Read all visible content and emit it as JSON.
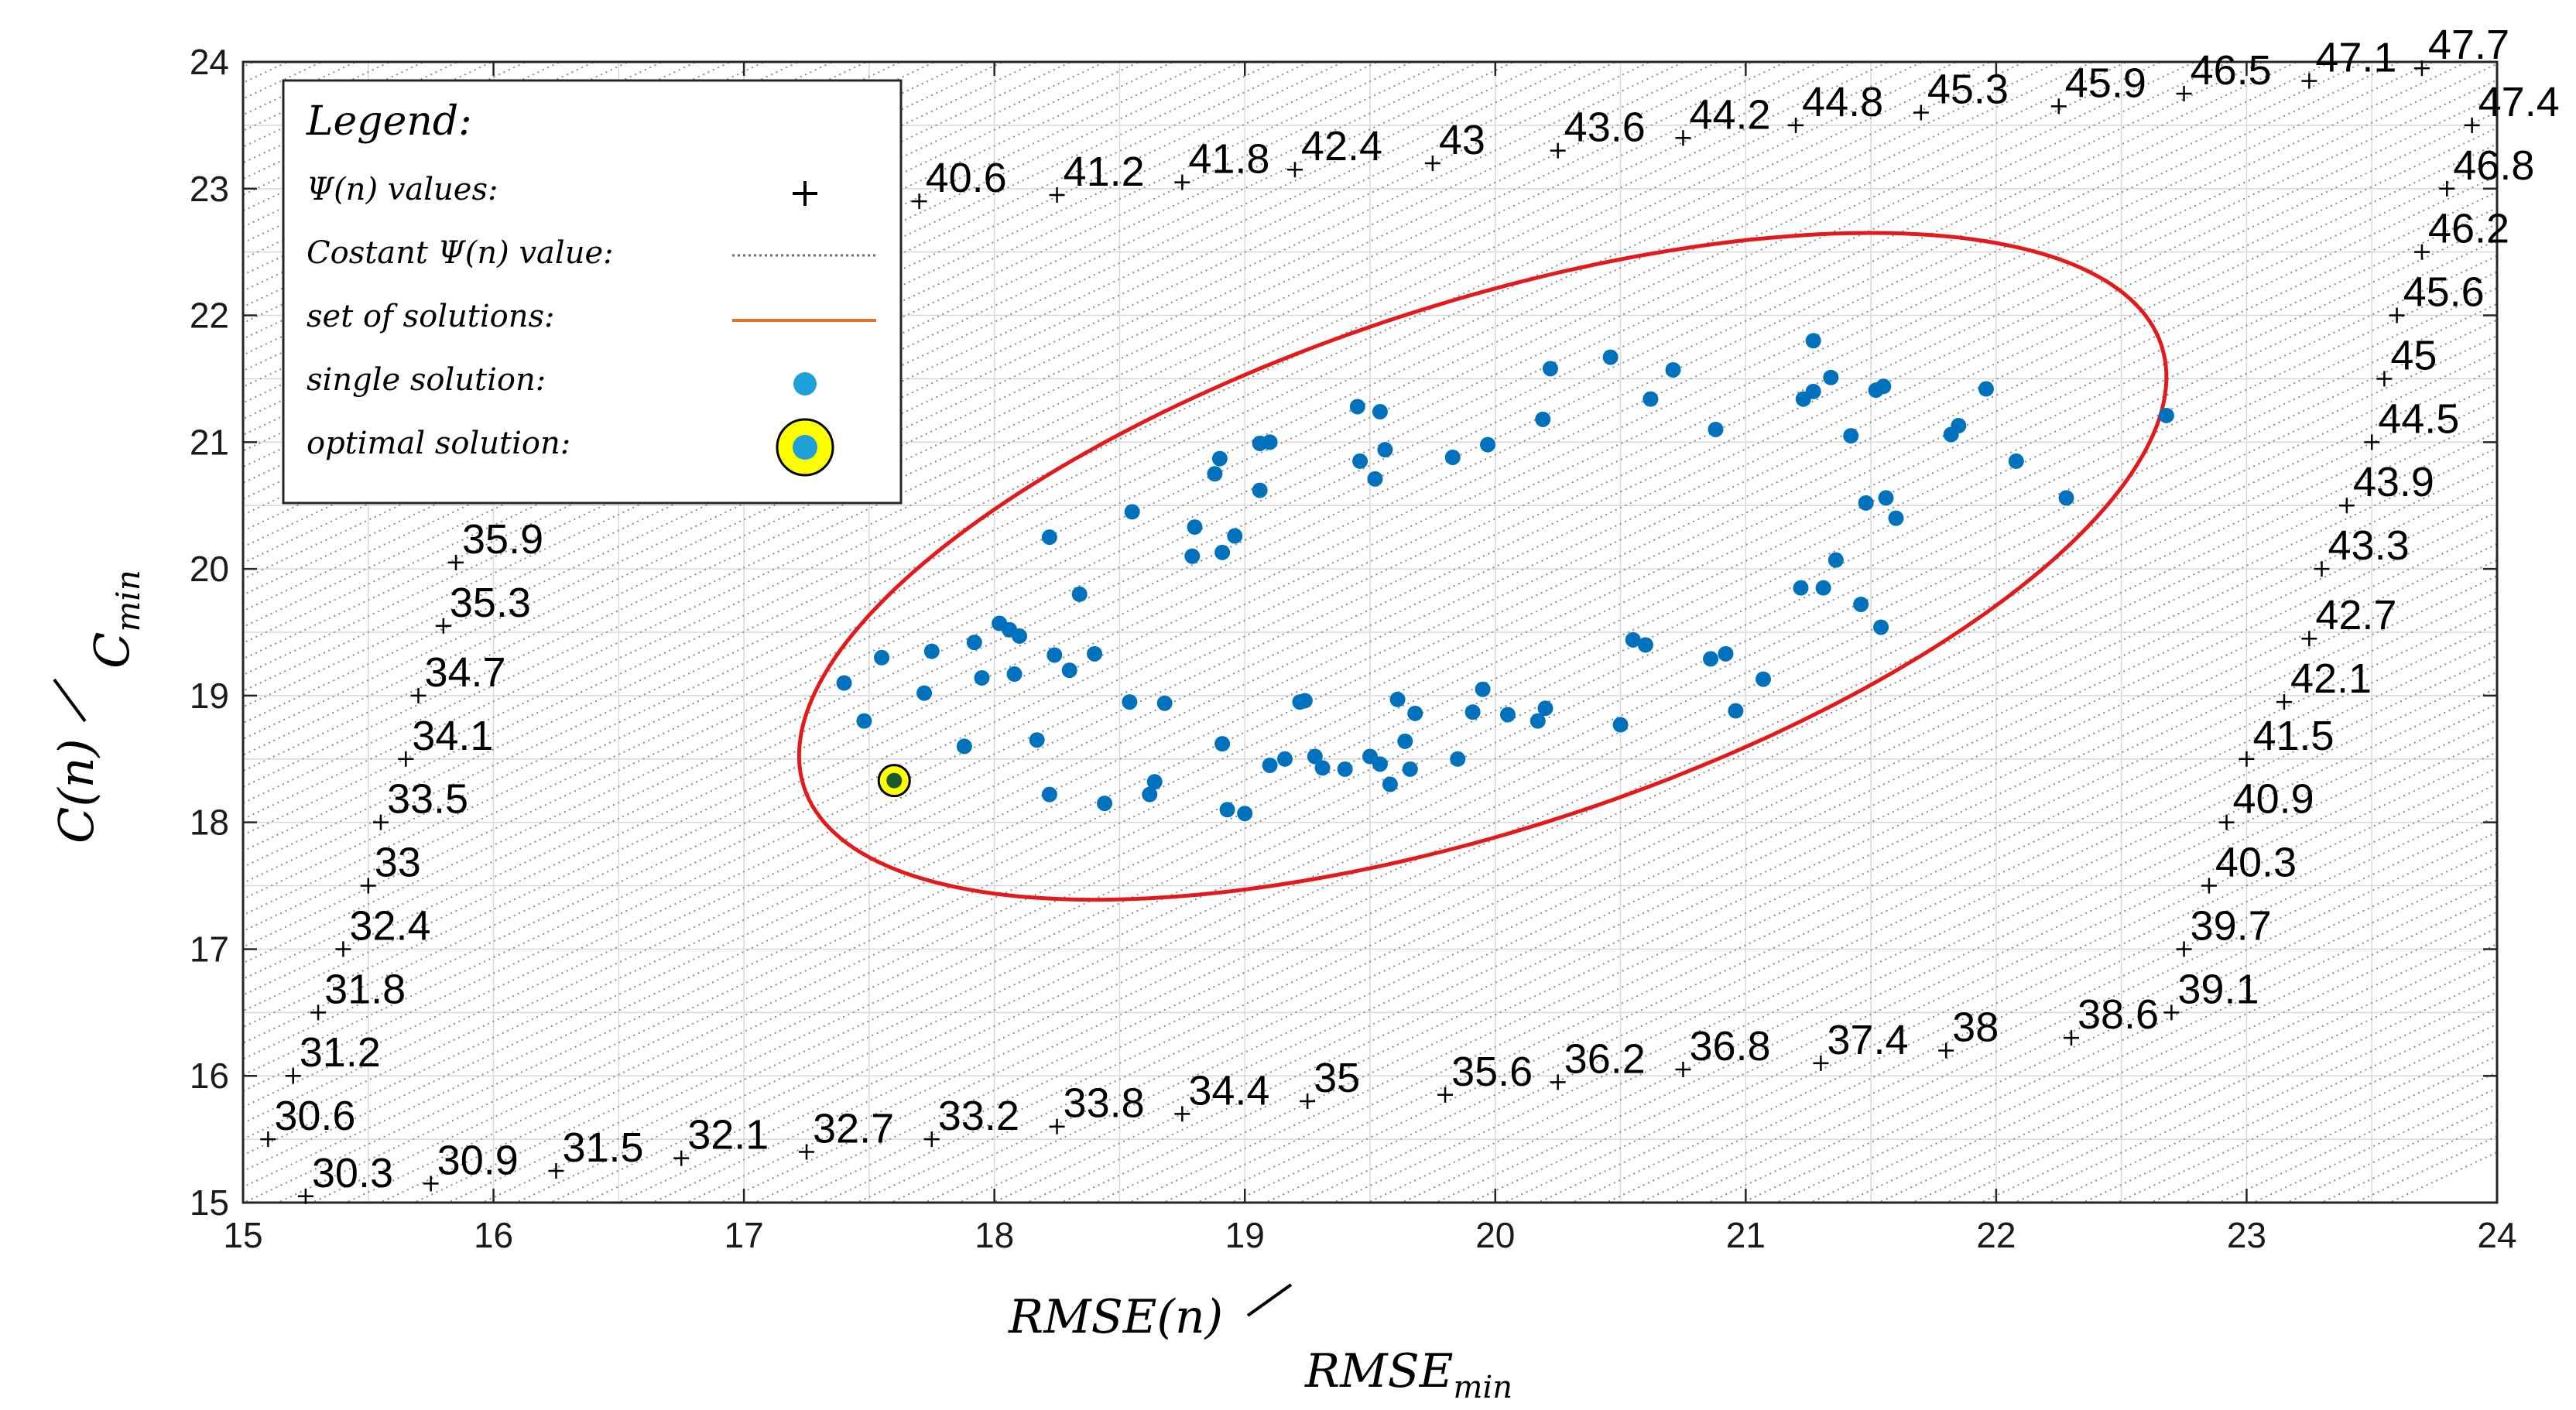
{
  "chart_data": {
    "type": "scatter",
    "title": "",
    "xlabel": "RMSE(n)",
    "xlabel_denominator": "RMSE",
    "xlabel_denominator_sub": "min",
    "ylabel": "C(n)",
    "ylabel_denominator": "C",
    "ylabel_denominator_sub": "min",
    "xlim": [
      15,
      24
    ],
    "ylim": [
      15,
      24
    ],
    "x_ticks": [
      "15",
      "16",
      "17",
      "18",
      "19",
      "20",
      "21",
      "22",
      "23",
      "24"
    ],
    "y_ticks": [
      "15",
      "16",
      "17",
      "18",
      "19",
      "20",
      "21",
      "22",
      "23",
      "24"
    ],
    "grid": true,
    "legend": {
      "position": "top-left",
      "title": "Legend:",
      "entries": [
        {
          "label": "Ψ(n) values:",
          "symbol": "plus"
        },
        {
          "label": "Costant Ψ(n) value:",
          "symbol": "dotted-line"
        },
        {
          "label": "set of solutions:",
          "symbol": "red-line"
        },
        {
          "label": "single solution:",
          "symbol": "dot"
        },
        {
          "label": "optimal solution:",
          "symbol": "optimal"
        }
      ]
    },
    "psi_values": [
      {
        "x": 15.25,
        "y": 15.05,
        "label": "30.3"
      },
      {
        "x": 15.1,
        "y": 15.5,
        "label": "30.6"
      },
      {
        "x": 15.75,
        "y": 15.15,
        "label": "30.9"
      },
      {
        "x": 15.2,
        "y": 16.0,
        "label": "31.2"
      },
      {
        "x": 16.25,
        "y": 15.25,
        "label": "31.5"
      },
      {
        "x": 15.3,
        "y": 16.5,
        "label": "31.8"
      },
      {
        "x": 16.75,
        "y": 15.35,
        "label": "32.1"
      },
      {
        "x": 15.4,
        "y": 17.0,
        "label": "32.4"
      },
      {
        "x": 17.25,
        "y": 15.4,
        "label": "32.7"
      },
      {
        "x": 15.5,
        "y": 17.5,
        "label": "33"
      },
      {
        "x": 17.75,
        "y": 15.5,
        "label": "33.2"
      },
      {
        "x": 15.55,
        "y": 18.0,
        "label": "33.5"
      },
      {
        "x": 18.25,
        "y": 15.6,
        "label": "33.8"
      },
      {
        "x": 15.65,
        "y": 18.5,
        "label": "34.1"
      },
      {
        "x": 18.75,
        "y": 15.7,
        "label": "34.4"
      },
      {
        "x": 15.7,
        "y": 19.0,
        "label": "34.7"
      },
      {
        "x": 19.25,
        "y": 15.8,
        "label": "35"
      },
      {
        "x": 15.8,
        "y": 19.55,
        "label": "35.3"
      },
      {
        "x": 19.8,
        "y": 15.85,
        "label": "35.6"
      },
      {
        "x": 15.85,
        "y": 20.05,
        "label": "35.9"
      },
      {
        "x": 20.25,
        "y": 15.95,
        "label": "36.2"
      },
      {
        "x": 20.75,
        "y": 16.05,
        "label": "36.8"
      },
      {
        "x": 21.3,
        "y": 16.1,
        "label": "37.4"
      },
      {
        "x": 21.8,
        "y": 16.2,
        "label": "38"
      },
      {
        "x": 22.3,
        "y": 16.3,
        "label": "38.6"
      },
      {
        "x": 22.7,
        "y": 16.5,
        "label": "39.1"
      },
      {
        "x": 22.75,
        "y": 17.0,
        "label": "39.7"
      },
      {
        "x": 22.85,
        "y": 17.5,
        "label": "40.3"
      },
      {
        "x": 22.92,
        "y": 18.0,
        "label": "40.9"
      },
      {
        "x": 23.0,
        "y": 18.5,
        "label": "41.5"
      },
      {
        "x": 23.15,
        "y": 18.95,
        "label": "42.1"
      },
      {
        "x": 23.25,
        "y": 19.45,
        "label": "42.7"
      },
      {
        "x": 23.3,
        "y": 20.0,
        "label": "43.3"
      },
      {
        "x": 23.4,
        "y": 20.5,
        "label": "43.9"
      },
      {
        "x": 23.5,
        "y": 21.0,
        "label": "44.5"
      },
      {
        "x": 23.55,
        "y": 21.5,
        "label": "45"
      },
      {
        "x": 23.6,
        "y": 22.0,
        "label": "45.6"
      },
      {
        "x": 23.7,
        "y": 22.5,
        "label": "46.2"
      },
      {
        "x": 23.8,
        "y": 23.0,
        "label": "46.8"
      },
      {
        "x": 23.9,
        "y": 23.5,
        "label": "47.4"
      },
      {
        "x": 23.7,
        "y": 23.95,
        "label": "47.7"
      },
      {
        "x": 23.25,
        "y": 23.85,
        "label": "47.1"
      },
      {
        "x": 22.75,
        "y": 23.75,
        "label": "46.5"
      },
      {
        "x": 22.25,
        "y": 23.65,
        "label": "45.9"
      },
      {
        "x": 21.7,
        "y": 23.6,
        "label": "45.3"
      },
      {
        "x": 21.2,
        "y": 23.5,
        "label": "44.8"
      },
      {
        "x": 20.75,
        "y": 23.4,
        "label": "44.2"
      },
      {
        "x": 20.25,
        "y": 23.3,
        "label": "43.6"
      },
      {
        "x": 19.75,
        "y": 23.2,
        "label": "43"
      },
      {
        "x": 19.2,
        "y": 23.15,
        "label": "42.4"
      },
      {
        "x": 18.75,
        "y": 23.05,
        "label": "41.8"
      },
      {
        "x": 18.25,
        "y": 22.95,
        "label": "41.2"
      },
      {
        "x": 17.7,
        "y": 22.9,
        "label": "40.6"
      }
    ],
    "solutions": [
      {
        "x": 17.4,
        "y": 19.1
      },
      {
        "x": 17.48,
        "y": 18.8
      },
      {
        "x": 17.55,
        "y": 19.3
      },
      {
        "x": 17.72,
        "y": 19.02
      },
      {
        "x": 17.75,
        "y": 19.35
      },
      {
        "x": 17.88,
        "y": 18.6
      },
      {
        "x": 17.92,
        "y": 19.42
      },
      {
        "x": 17.95,
        "y": 19.14
      },
      {
        "x": 18.02,
        "y": 19.57
      },
      {
        "x": 18.06,
        "y": 19.52
      },
      {
        "x": 18.08,
        "y": 19.17
      },
      {
        "x": 18.1,
        "y": 19.47
      },
      {
        "x": 18.17,
        "y": 18.65
      },
      {
        "x": 18.22,
        "y": 18.22
      },
      {
        "x": 18.22,
        "y": 20.25
      },
      {
        "x": 18.24,
        "y": 19.32
      },
      {
        "x": 18.3,
        "y": 19.2
      },
      {
        "x": 18.34,
        "y": 19.8
      },
      {
        "x": 18.4,
        "y": 19.33
      },
      {
        "x": 18.44,
        "y": 18.15
      },
      {
        "x": 18.54,
        "y": 18.95
      },
      {
        "x": 18.55,
        "y": 20.45
      },
      {
        "x": 18.62,
        "y": 18.22
      },
      {
        "x": 18.64,
        "y": 18.32
      },
      {
        "x": 18.68,
        "y": 18.94
      },
      {
        "x": 18.79,
        "y": 20.1
      },
      {
        "x": 18.8,
        "y": 20.33
      },
      {
        "x": 18.88,
        "y": 20.75
      },
      {
        "x": 18.9,
        "y": 20.87
      },
      {
        "x": 18.91,
        "y": 18.62
      },
      {
        "x": 18.91,
        "y": 20.13
      },
      {
        "x": 18.93,
        "y": 18.1
      },
      {
        "x": 18.96,
        "y": 20.26
      },
      {
        "x": 19.0,
        "y": 18.07
      },
      {
        "x": 19.06,
        "y": 20.99
      },
      {
        "x": 19.06,
        "y": 20.62
      },
      {
        "x": 19.1,
        "y": 21.0
      },
      {
        "x": 19.1,
        "y": 18.45
      },
      {
        "x": 19.16,
        "y": 18.5
      },
      {
        "x": 19.22,
        "y": 18.95
      },
      {
        "x": 19.24,
        "y": 18.96
      },
      {
        "x": 19.28,
        "y": 18.52
      },
      {
        "x": 19.31,
        "y": 18.43
      },
      {
        "x": 19.4,
        "y": 18.42
      },
      {
        "x": 19.45,
        "y": 21.28
      },
      {
        "x": 19.46,
        "y": 20.85
      },
      {
        "x": 19.5,
        "y": 18.52
      },
      {
        "x": 19.52,
        "y": 20.71
      },
      {
        "x": 19.54,
        "y": 21.24
      },
      {
        "x": 19.54,
        "y": 18.46
      },
      {
        "x": 19.56,
        "y": 20.94
      },
      {
        "x": 19.58,
        "y": 18.3
      },
      {
        "x": 19.61,
        "y": 18.97
      },
      {
        "x": 19.64,
        "y": 18.64
      },
      {
        "x": 19.66,
        "y": 18.42
      },
      {
        "x": 19.68,
        "y": 18.86
      },
      {
        "x": 19.83,
        "y": 20.88
      },
      {
        "x": 19.85,
        "y": 18.5
      },
      {
        "x": 19.91,
        "y": 18.87
      },
      {
        "x": 19.95,
        "y": 19.05
      },
      {
        "x": 19.97,
        "y": 20.98
      },
      {
        "x": 20.05,
        "y": 18.85
      },
      {
        "x": 20.17,
        "y": 18.8
      },
      {
        "x": 20.19,
        "y": 21.18
      },
      {
        "x": 20.2,
        "y": 18.9
      },
      {
        "x": 20.22,
        "y": 21.58
      },
      {
        "x": 20.46,
        "y": 21.67
      },
      {
        "x": 20.5,
        "y": 18.77
      },
      {
        "x": 20.55,
        "y": 19.44
      },
      {
        "x": 20.6,
        "y": 19.4
      },
      {
        "x": 20.62,
        "y": 21.34
      },
      {
        "x": 20.71,
        "y": 21.57
      },
      {
        "x": 20.86,
        "y": 19.29
      },
      {
        "x": 20.88,
        "y": 21.1
      },
      {
        "x": 20.92,
        "y": 19.33
      },
      {
        "x": 20.96,
        "y": 18.88
      },
      {
        "x": 21.07,
        "y": 19.13
      },
      {
        "x": 21.22,
        "y": 19.85
      },
      {
        "x": 21.23,
        "y": 21.34
      },
      {
        "x": 21.27,
        "y": 21.4
      },
      {
        "x": 21.27,
        "y": 21.8
      },
      {
        "x": 21.31,
        "y": 19.85
      },
      {
        "x": 21.34,
        "y": 21.51
      },
      {
        "x": 21.36,
        "y": 20.07
      },
      {
        "x": 21.42,
        "y": 21.05
      },
      {
        "x": 21.46,
        "y": 19.72
      },
      {
        "x": 21.48,
        "y": 20.52
      },
      {
        "x": 21.52,
        "y": 21.41
      },
      {
        "x": 21.54,
        "y": 19.54
      },
      {
        "x": 21.55,
        "y": 21.44
      },
      {
        "x": 21.56,
        "y": 20.56
      },
      {
        "x": 21.6,
        "y": 20.4
      },
      {
        "x": 21.82,
        "y": 21.06
      },
      {
        "x": 21.85,
        "y": 21.13
      },
      {
        "x": 21.96,
        "y": 21.42
      },
      {
        "x": 22.08,
        "y": 20.85
      },
      {
        "x": 22.28,
        "y": 20.56
      },
      {
        "x": 22.68,
        "y": 21.21
      }
    ],
    "optimal_solution": {
      "x": 17.6,
      "y": 18.33
    },
    "set_of_solutions_ellipse": {
      "center_x": 19.95,
      "center_y": 20.02,
      "semi_axis_a": 2.85,
      "semi_axis_b": 1.05,
      "rotation_deg": 18
    },
    "colors": {
      "solution": "#0072BD",
      "ellipse": "#E31A1C",
      "optimal_fill": "#FFFF00",
      "grid": "#d9d9d9",
      "hatch": "#8a8a8a"
    }
  }
}
